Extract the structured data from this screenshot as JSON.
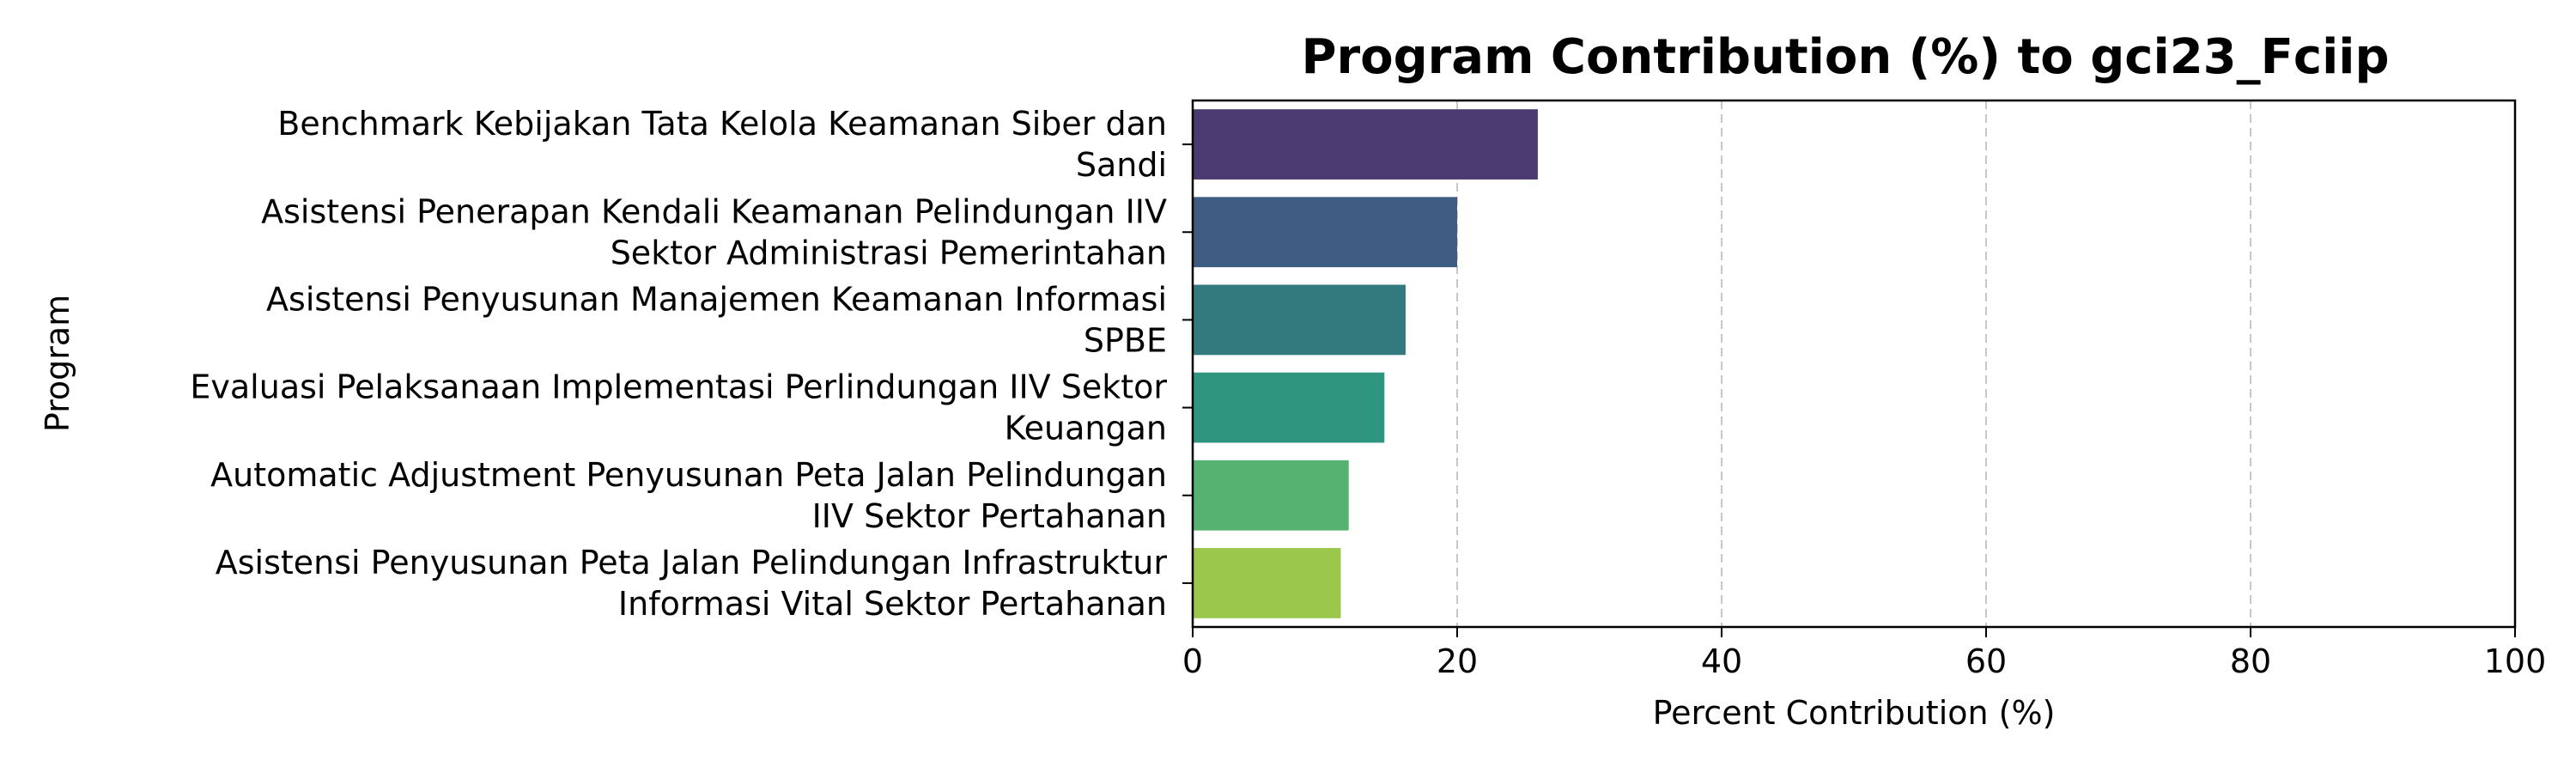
{
  "chart_data": {
    "type": "bar",
    "orientation": "horizontal",
    "title": "Program Contribution (%) to gci23_Fciip",
    "xlabel": "Percent Contribution (%)",
    "ylabel": "Program",
    "xlim": [
      0,
      100
    ],
    "xticks": [
      "0",
      "20",
      "40",
      "60",
      "80",
      "100"
    ],
    "grid": "x, dashed",
    "legend": "none",
    "categories": [
      [
        "Benchmark Kebijakan Tata Kelola Keamanan Siber dan",
        "Sandi"
      ],
      [
        "Asistensi Penerapan Kendali Keamanan Pelindungan IIV",
        "Sektor Administrasi Pemerintahan"
      ],
      [
        "Asistensi Penyusunan Manajemen Keamanan Informasi",
        "SPBE"
      ],
      [
        "Evaluasi Pelaksanaan Implementasi Perlindungan IIV Sektor",
        "Keuangan"
      ],
      [
        "Automatic Adjustment Penyusunan Peta Jalan Pelindungan",
        "IIV Sektor Pertahanan"
      ],
      [
        "Asistensi Penyusunan Peta Jalan Pelindungan Infrastruktur",
        "Informasi Vital Sektor Pertahanan"
      ]
    ],
    "values": [
      26.1,
      20.0,
      16.1,
      14.5,
      11.8,
      11.2
    ],
    "colors": [
      "#4b3a72",
      "#3e5c81",
      "#337a7f",
      "#2f957f",
      "#56b271",
      "#9bc74c"
    ]
  }
}
